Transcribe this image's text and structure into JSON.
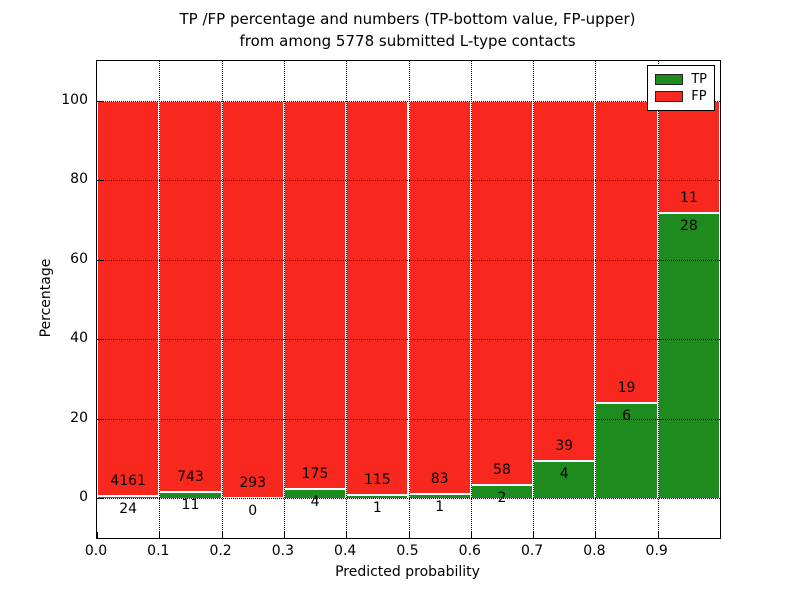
{
  "title": {
    "line1": "TP /FP percentage and numbers (TP-bottom value, FP-upper)",
    "line2": "from among 5778 submitted L-type contacts"
  },
  "chart_data": {
    "type": "bar",
    "stacked": true,
    "normalized_to_percent": true,
    "title": "TP /FP percentage and numbers (TP-bottom value, FP-upper) from among 5778 submitted L-type contacts",
    "xlabel": "Predicted probability",
    "ylabel": "Percentage",
    "xlim": [
      0.0,
      1.0
    ],
    "ylim": [
      -10,
      110
    ],
    "xticks": [
      "0.0",
      "0.1",
      "0.2",
      "0.3",
      "0.4",
      "0.5",
      "0.6",
      "0.7",
      "0.8",
      "0.9"
    ],
    "yticks": [
      "0",
      "20",
      "40",
      "60",
      "80",
      "100"
    ],
    "grid": "dotted, both axes",
    "bins_start": [
      0.0,
      0.1,
      0.2,
      0.3,
      0.4,
      0.5,
      0.6,
      0.7,
      0.8,
      0.9
    ],
    "bin_width": 0.1,
    "series": [
      {
        "name": "TP",
        "color": "#1e8b1e",
        "counts": [
          24,
          11,
          0,
          4,
          1,
          1,
          2,
          4,
          6,
          28
        ]
      },
      {
        "name": "FP",
        "color": "#f8281e",
        "counts": [
          4161,
          743,
          293,
          175,
          115,
          83,
          58,
          39,
          19,
          11
        ]
      }
    ],
    "tp_percent_per_bin": [
      0.57,
      1.46,
      0.0,
      2.23,
      0.86,
      1.19,
      3.33,
      9.3,
      24.0,
      71.79
    ],
    "total_contacts": 5778,
    "legend": {
      "position": "upper right",
      "items": [
        "TP",
        "FP"
      ]
    }
  },
  "colors": {
    "tp": "#1e8b1e",
    "fp": "#f8281e",
    "grid": "#000000",
    "background": "#ffffff"
  }
}
